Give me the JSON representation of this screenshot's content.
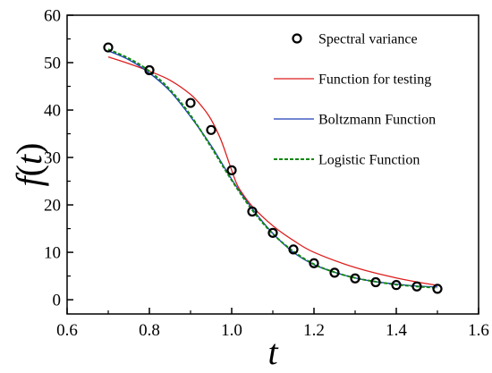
{
  "chart_data": {
    "type": "line",
    "xlabel": "t",
    "ylabel": "f(t)",
    "ylabel_parts": {
      "func": "f",
      "open": "(",
      "var": "t",
      "close": ")"
    },
    "xlim": [
      0.6,
      1.6
    ],
    "ylim": [
      -3,
      60
    ],
    "x_ticks": [
      0.6,
      0.8,
      1.0,
      1.2,
      1.4,
      1.6
    ],
    "x_tick_labels": [
      "0.6",
      "0.8",
      "1.0",
      "1.2",
      "1.4",
      "1.6"
    ],
    "y_ticks": [
      0,
      10,
      20,
      30,
      40,
      50,
      60
    ],
    "y_tick_labels": [
      "0",
      "10",
      "20",
      "30",
      "40",
      "50",
      "60"
    ],
    "grid": false,
    "legend_position": "top-right",
    "series": [
      {
        "name": "Spectral variance",
        "kind": "markers",
        "color": "#000000",
        "x": [
          0.7,
          0.8,
          0.9,
          0.95,
          1.0,
          1.05,
          1.1,
          1.15,
          1.2,
          1.25,
          1.3,
          1.35,
          1.4,
          1.45,
          1.5
        ],
        "y": [
          53.2,
          48.4,
          41.5,
          35.8,
          27.3,
          18.6,
          14.1,
          10.6,
          7.7,
          5.7,
          4.5,
          3.7,
          3.1,
          2.8,
          2.3
        ]
      },
      {
        "name": "Function for testing",
        "kind": "line",
        "color": "#dd1f1f",
        "dash": "",
        "x": [
          0.7,
          0.75,
          0.8,
          0.85,
          0.9,
          0.93,
          0.95,
          0.97,
          0.98,
          0.99,
          1.0,
          1.01,
          1.02,
          1.05,
          1.1,
          1.15,
          1.2,
          1.3,
          1.4,
          1.5
        ],
        "y": [
          51.2,
          49.8,
          48.2,
          46.3,
          43.3,
          40.5,
          38.0,
          34.5,
          32.3,
          29.8,
          27.3,
          24.9,
          23.2,
          19.7,
          15.6,
          12.5,
          10.0,
          6.8,
          4.6,
          3.0
        ]
      },
      {
        "name": "Boltzmann Function",
        "kind": "line",
        "color": "#1f3fb8",
        "dash": "",
        "x": [
          0.7,
          0.75,
          0.8,
          0.85,
          0.9,
          0.95,
          1.0,
          1.05,
          1.1,
          1.15,
          1.2,
          1.25,
          1.3,
          1.35,
          1.4,
          1.45,
          1.5
        ],
        "y": [
          52.5,
          50.6,
          47.8,
          44.0,
          38.6,
          32.5,
          25.4,
          19.2,
          14.0,
          10.0,
          7.4,
          5.8,
          4.6,
          3.8,
          3.3,
          2.9,
          2.7
        ]
      },
      {
        "name": "Logistic Function",
        "kind": "line",
        "color": "#118811",
        "dash": "4,2",
        "x": [
          0.7,
          0.75,
          0.8,
          0.85,
          0.9,
          0.95,
          1.0,
          1.05,
          1.1,
          1.15,
          1.2,
          1.25,
          1.3,
          1.35,
          1.4,
          1.45,
          1.5
        ],
        "y": [
          52.8,
          50.9,
          48.2,
          44.3,
          38.9,
          32.2,
          25.2,
          18.9,
          13.9,
          10.2,
          7.5,
          5.8,
          4.6,
          3.8,
          3.2,
          2.8,
          2.5
        ]
      }
    ]
  }
}
